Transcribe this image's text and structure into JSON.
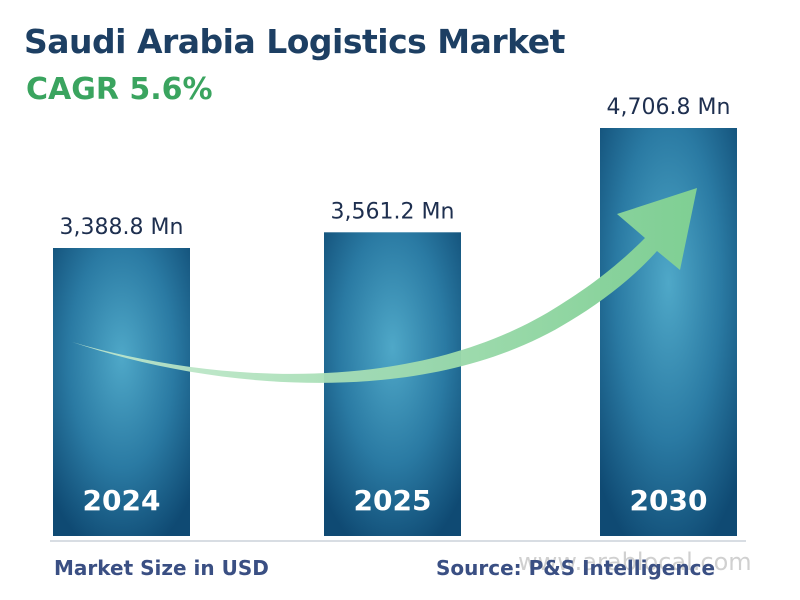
{
  "title": "Saudi Arabia Logistics Market",
  "subtitle": "CAGR 5.6%",
  "footer": {
    "left": "Market Size in USD",
    "right": "Source: P&S Intelligence"
  },
  "watermark": "www.arablocal.com",
  "colors": {
    "title": "#1d3f63",
    "cagr": "#3aa45f",
    "bar_dark": "#0f4a73",
    "bar_light": "#3f97b9",
    "arrow": "#8fd6a0",
    "footer": "#3a4f83"
  },
  "chart_data": {
    "type": "bar",
    "categories": [
      "2024",
      "2025",
      "2030"
    ],
    "values": [
      3388.8,
      3561.2,
      4706.8
    ],
    "value_labels": [
      "3,388.8 Mn",
      "3,561.2 Mn",
      "4,706.8 Mn"
    ],
    "title": "Saudi Arabia Logistics Market",
    "subtitle": "CAGR 5.6%",
    "xlabel": "",
    "ylabel": "",
    "grid": false,
    "legend": "none",
    "annotation": "upward trend arrow"
  }
}
